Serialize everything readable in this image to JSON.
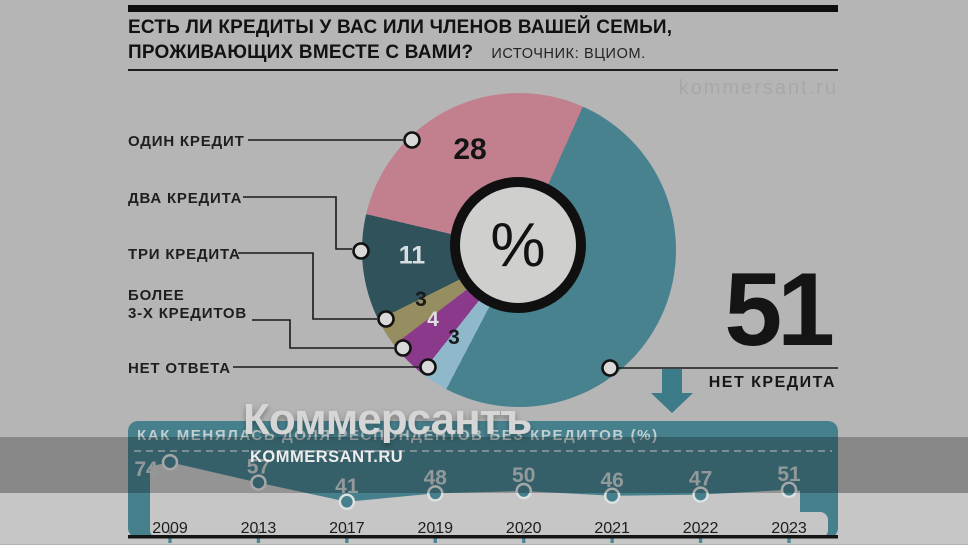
{
  "header": {
    "title_line1": "ЕСТЬ ЛИ КРЕДИТЫ У ВАС ИЛИ ЧЛЕНОВ ВАШЕЙ СЕМЬИ,",
    "title_line2": "ПРОЖИВАЮЩИХ ВМЕСТЕ С ВАМИ?",
    "source": "ИСТОЧНИК: ВЦИОМ.",
    "watermark": "kommersant.ru"
  },
  "pie": {
    "center_symbol": "%",
    "slices": [
      {
        "label": "ОДИН КРЕДИТ",
        "value": 28,
        "color": "#c2808f",
        "value_color": "#141414"
      },
      {
        "label": "ДВА КРЕДИТА",
        "value": 11,
        "color": "#2f525b",
        "value_color": "#d9dfe1"
      },
      {
        "label": "ТРИ КРЕДИТА",
        "value": 3,
        "color": "#968e60",
        "value_color": "#191919"
      },
      {
        "label": "БОЛЕЕ\n3-Х КРЕДИТОВ",
        "value": 4,
        "color": "#8b3a8b",
        "value_color": "#dedede"
      },
      {
        "label": "НЕТ ОТВЕТА",
        "value": 3,
        "color": "#8fb9cb",
        "value_color": "#17191b"
      },
      {
        "label": "НЕТ КРЕДИТА",
        "value": 51,
        "color": "#48828f",
        "value_color": "#141414"
      }
    ]
  },
  "highlight": {
    "value": "51",
    "label": "НЕТ КРЕДИТА"
  },
  "panel": {
    "title": "КАК МЕНЯЛАСЬ ДОЛЯ РЕСПОНДЕНТОВ БЕЗ КРЕДИТОВ (%)",
    "background_color": "#47808d",
    "area_color": "#c6c6c6",
    "value_color": "#c3cdce",
    "year_color": "#1c1c1c"
  },
  "timeline": {
    "years": [
      "2009",
      "2013",
      "2017",
      "2019",
      "2020",
      "2021",
      "2022",
      "2023"
    ],
    "values": [
      74,
      57,
      41,
      48,
      50,
      46,
      47,
      51
    ]
  },
  "overlay": {
    "logo": "Коммерсантъ",
    "site": "KOMMERSANT.RU"
  },
  "colors": {
    "arrow": "#3e7b89",
    "band": "rgba(0,0,0,0.25)",
    "page_bg": "#b5b5b5"
  },
  "chart_data": [
    {
      "type": "pie",
      "title": "ЕСТЬ ЛИ КРЕДИТЫ У ВАС ИЛИ ЧЛЕНОВ ВАШЕЙ СЕМЬИ, ПРОЖИВАЮЩИХ ВМЕСТЕ С ВАМИ?",
      "unit": "%",
      "source": "ВЦИОМ",
      "categories": [
        "ОДИН КРЕДИТ",
        "ДВА КРЕДИТА",
        "ТРИ КРЕДИТА",
        "БОЛЕЕ 3-Х КРЕДИТОВ",
        "НЕТ ОТВЕТА",
        "НЕТ КРЕДИТА"
      ],
      "values": [
        28,
        11,
        3,
        4,
        3,
        51
      ],
      "colors": [
        "#c2808f",
        "#2f525b",
        "#968e60",
        "#8b3a8b",
        "#8fb9cb",
        "#48828f"
      ],
      "legend_position": "left-callouts",
      "center_label": "%"
    },
    {
      "type": "line",
      "title": "КАК МЕНЯЛАСЬ ДОЛЯ РЕСПОНДЕНТОВ БЕЗ КРЕДИТОВ (%)",
      "x": [
        "2009",
        "2013",
        "2017",
        "2019",
        "2020",
        "2021",
        "2022",
        "2023"
      ],
      "values": [
        74,
        57,
        41,
        48,
        50,
        46,
        47,
        51
      ],
      "ylim": [
        0,
        100
      ],
      "grid": false,
      "style": "area-below-line-cutout"
    }
  ]
}
